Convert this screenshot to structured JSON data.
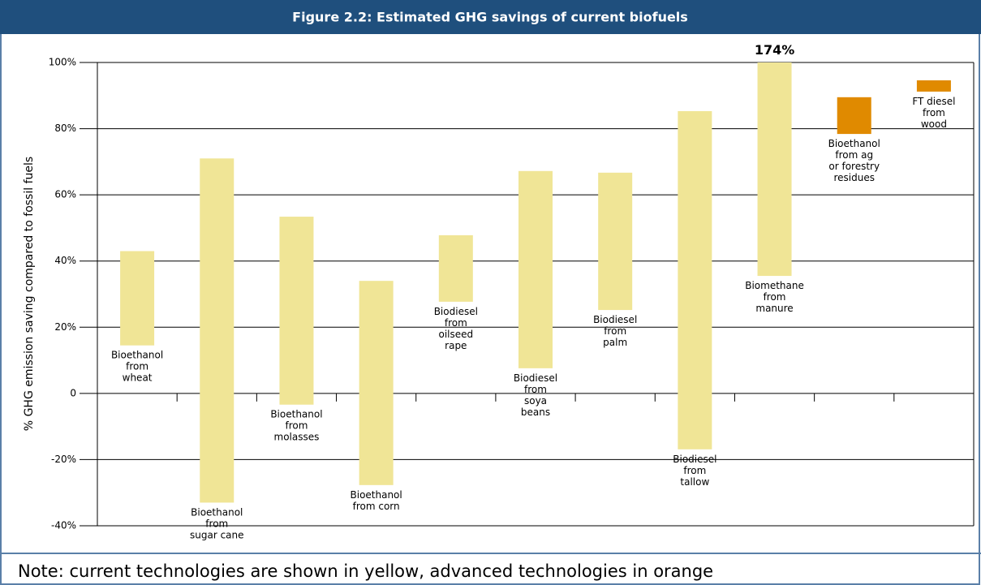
{
  "chart_data": {
    "type": "floating_bar",
    "title": "Figure 2.2: Estimated GHG savings of current biofuels",
    "y_label": "% GHG emission saving compared to fossil fuels",
    "note": "Note: current technologies are shown in yellow, advanced technologies in orange",
    "categories": [
      "Bioethanol\nfrom\nwheat",
      "Bioethanol\nfrom\nsugar cane",
      "Bioethanol\nfrom\nmolasses",
      "Bioethanol\nfrom corn",
      "Biodiesel\nfrom\noilseed\nrape",
      "Biodiesel\nfrom\nsoya\nbeans",
      "Biodiesel\nfrom\npalm",
      "Biodiesel\nfrom\ntallow",
      "Biomethane\nfrom\nmanure",
      "Bioethanol\nfrom ag\nor forestry\nresidues",
      "FT diesel\nfrom\nwood"
    ],
    "low": [
      14.5,
      -33,
      -3.4,
      -27.7,
      27.7,
      7.6,
      25.2,
      -16.9,
      35.5,
      78.4,
      91.2
    ],
    "high": [
      43,
      71,
      53.4,
      34,
      47.8,
      67.2,
      66.7,
      85.3,
      174,
      89.5,
      94.6
    ],
    "high_labels": [
      null,
      null,
      null,
      null,
      null,
      null,
      null,
      null,
      "174%",
      null,
      null
    ],
    "colors": [
      "#f0e596",
      "#f0e596",
      "#f0e596",
      "#f0e596",
      "#f0e596",
      "#f0e596",
      "#f0e596",
      "#f0e596",
      "#f0e596",
      "#e08a00",
      "#e08a00"
    ],
    "ylim": [
      -40,
      100
    ],
    "yticks": [
      {
        "value": -40,
        "label": "-40%"
      },
      {
        "value": -20,
        "label": "-20%"
      },
      0,
      {
        "value": 20,
        "label": "20%"
      },
      {
        "value": 40,
        "label": "40%"
      },
      {
        "value": 60,
        "label": "60%"
      },
      {
        "value": 80,
        "label": "80%"
      },
      {
        "value": 100,
        "label": "100%"
      }
    ],
    "grid": true
  }
}
